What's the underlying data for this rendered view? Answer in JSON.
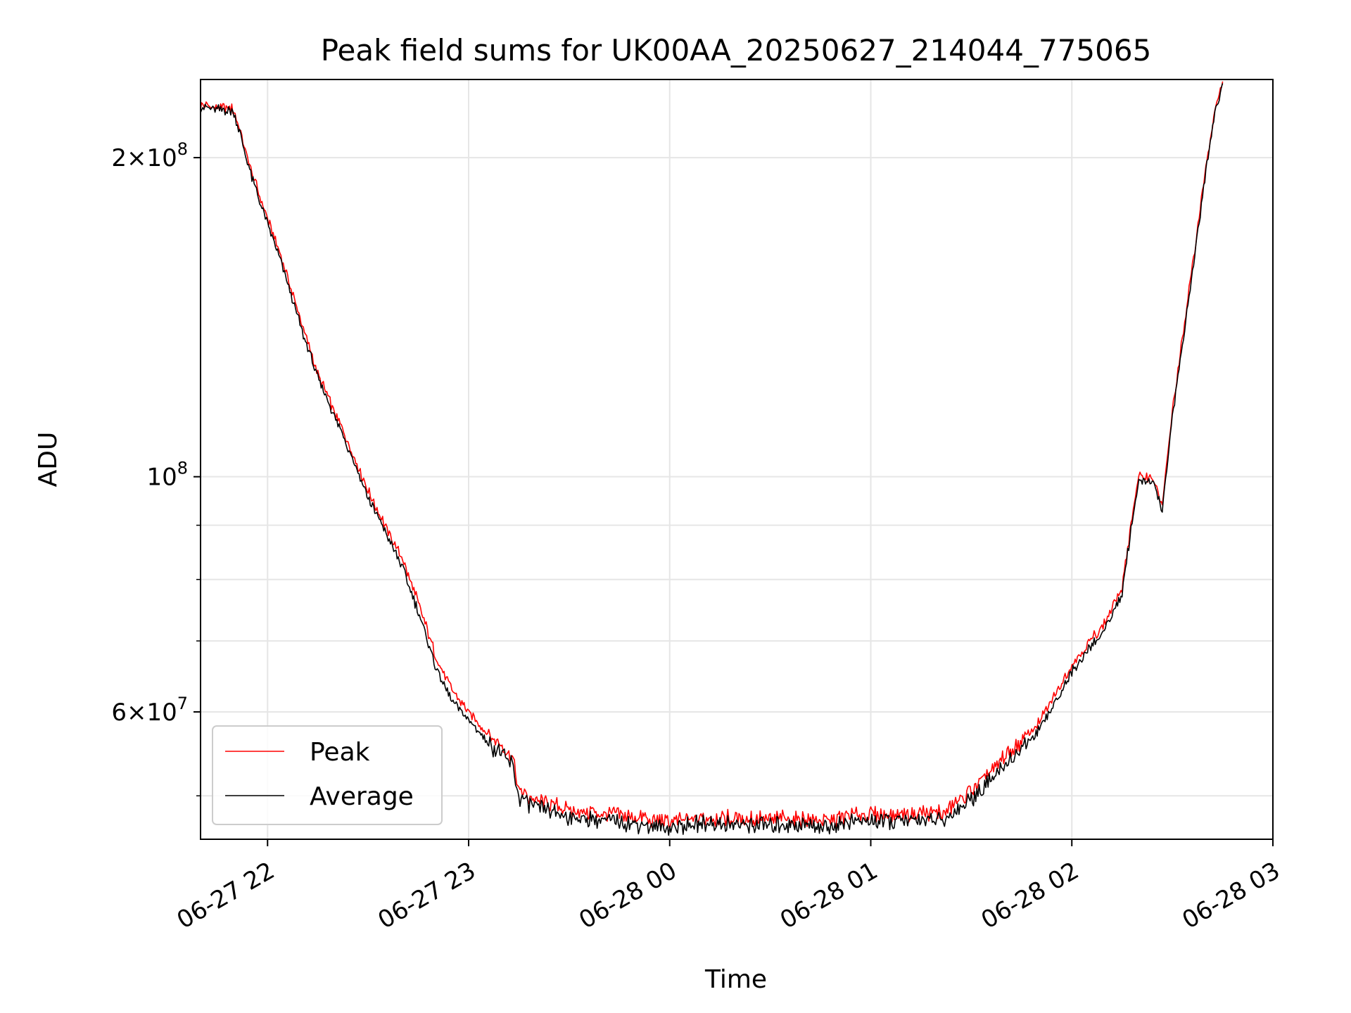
{
  "chart_data": {
    "type": "line",
    "title": "Peak field sums for UK00AA_20250627_214044_775065",
    "xlabel": "Time",
    "ylabel": "ADU",
    "yscale": "log",
    "ylim": [
      45500000,
      237000000
    ],
    "xlim": [
      "2025-06-27 21:40",
      "2025-06-28 03:00"
    ],
    "grid": true,
    "legend_position": "lower-left",
    "x_ticks": [
      {
        "time": "2025-06-27 22:00",
        "label": "06-27 22"
      },
      {
        "time": "2025-06-27 23:00",
        "label": "06-27 23"
      },
      {
        "time": "2025-06-28 00:00",
        "label": "06-28 00"
      },
      {
        "time": "2025-06-28 01:00",
        "label": "06-28 01"
      },
      {
        "time": "2025-06-28 02:00",
        "label": "06-28 02"
      },
      {
        "time": "2025-06-28 03:00",
        "label": "06-28 03"
      }
    ],
    "y_ticks_major": [
      {
        "value": 60000000,
        "mantissa": "6",
        "exponent": "7"
      },
      {
        "value": 100000000,
        "mantissa": "",
        "exponent": "8"
      },
      {
        "value": 200000000,
        "mantissa": "2",
        "exponent": "8"
      }
    ],
    "y_ticks_minor": [
      50000000,
      70000000,
      80000000,
      90000000
    ],
    "series": [
      {
        "name": "Peak",
        "color": "#ff0000",
        "x": [
          "2025-06-27 21:40",
          "2025-06-27 21:46",
          "2025-06-27 21:50",
          "2025-06-27 21:55",
          "2025-06-27 22:00",
          "2025-06-27 22:05",
          "2025-06-27 22:10",
          "2025-06-27 22:15",
          "2025-06-27 22:20",
          "2025-06-27 22:25",
          "2025-06-27 22:30",
          "2025-06-27 22:35",
          "2025-06-27 22:40",
          "2025-06-27 22:45",
          "2025-06-27 22:50",
          "2025-06-27 22:55",
          "2025-06-27 23:00",
          "2025-06-27 23:05",
          "2025-06-27 23:10",
          "2025-06-27 23:13",
          "2025-06-27 23:15",
          "2025-06-27 23:20",
          "2025-06-27 23:25",
          "2025-06-27 23:30",
          "2025-06-27 23:45",
          "2025-06-28 00:00",
          "2025-06-28 00:15",
          "2025-06-28 00:30",
          "2025-06-28 00:45",
          "2025-06-28 01:00",
          "2025-06-28 01:15",
          "2025-06-28 01:22",
          "2025-06-28 01:30",
          "2025-06-28 01:40",
          "2025-06-28 01:50",
          "2025-06-28 02:00",
          "2025-06-28 02:10",
          "2025-06-28 02:15",
          "2025-06-28 02:18",
          "2025-06-28 02:20",
          "2025-06-28 02:24",
          "2025-06-28 02:27",
          "2025-06-28 02:30",
          "2025-06-28 02:35",
          "2025-06-28 02:40",
          "2025-06-28 02:43",
          "2025-06-28 02:45"
        ],
        "values": [
          224000000,
          223000000,
          222000000,
          195000000,
          175000000,
          158000000,
          140000000,
          125000000,
          115000000,
          106000000,
          97000000,
          90000000,
          84000000,
          76000000,
          68000000,
          63000000,
          60000000,
          57500000,
          55500000,
          54500000,
          50500000,
          49500000,
          49000000,
          48500000,
          48000000,
          47200000,
          47800000,
          47500000,
          47400000,
          48000000,
          48200000,
          48300000,
          50500000,
          54500000,
          58500000,
          66500000,
          73000000,
          78500000,
          92000000,
          100000000,
          100000000,
          94000000,
          115000000,
          150000000,
          196000000,
          225000000,
          236000000
        ]
      },
      {
        "name": "Average",
        "color": "#000000",
        "x": [
          "2025-06-27 21:40",
          "2025-06-27 21:46",
          "2025-06-27 21:50",
          "2025-06-27 21:55",
          "2025-06-27 22:00",
          "2025-06-27 22:05",
          "2025-06-27 22:10",
          "2025-06-27 22:15",
          "2025-06-27 22:20",
          "2025-06-27 22:25",
          "2025-06-27 22:30",
          "2025-06-27 22:35",
          "2025-06-27 22:40",
          "2025-06-27 22:45",
          "2025-06-27 22:50",
          "2025-06-27 22:55",
          "2025-06-27 23:00",
          "2025-06-27 23:05",
          "2025-06-27 23:10",
          "2025-06-27 23:13",
          "2025-06-27 23:15",
          "2025-06-27 23:20",
          "2025-06-27 23:25",
          "2025-06-27 23:30",
          "2025-06-27 23:45",
          "2025-06-28 00:00",
          "2025-06-28 00:15",
          "2025-06-28 00:30",
          "2025-06-28 00:45",
          "2025-06-28 01:00",
          "2025-06-28 01:15",
          "2025-06-28 01:22",
          "2025-06-28 01:30",
          "2025-06-28 01:40",
          "2025-06-28 01:50",
          "2025-06-28 02:00",
          "2025-06-28 02:10",
          "2025-06-28 02:15",
          "2025-06-28 02:18",
          "2025-06-28 02:20",
          "2025-06-28 02:24",
          "2025-06-28 02:27",
          "2025-06-28 02:30",
          "2025-06-28 02:35",
          "2025-06-28 02:40",
          "2025-06-28 02:43",
          "2025-06-28 02:45"
        ],
        "values": [
          223000000,
          222000000,
          221000000,
          193000000,
          173000000,
          156000000,
          138000000,
          124000000,
          114000000,
          105000000,
          95500000,
          89000000,
          82500000,
          74500000,
          66500000,
          61500000,
          59000000,
          56500000,
          54500000,
          53500000,
          49800000,
          48800000,
          48200000,
          47800000,
          47300000,
          46600000,
          47200000,
          46900000,
          46800000,
          47300000,
          47500000,
          47500000,
          49700000,
          53500000,
          57500000,
          65500000,
          72000000,
          77500000,
          91000000,
          99000000,
          99000000,
          93000000,
          114000000,
          148000000,
          194000000,
          223000000,
          235000000
        ]
      }
    ]
  }
}
